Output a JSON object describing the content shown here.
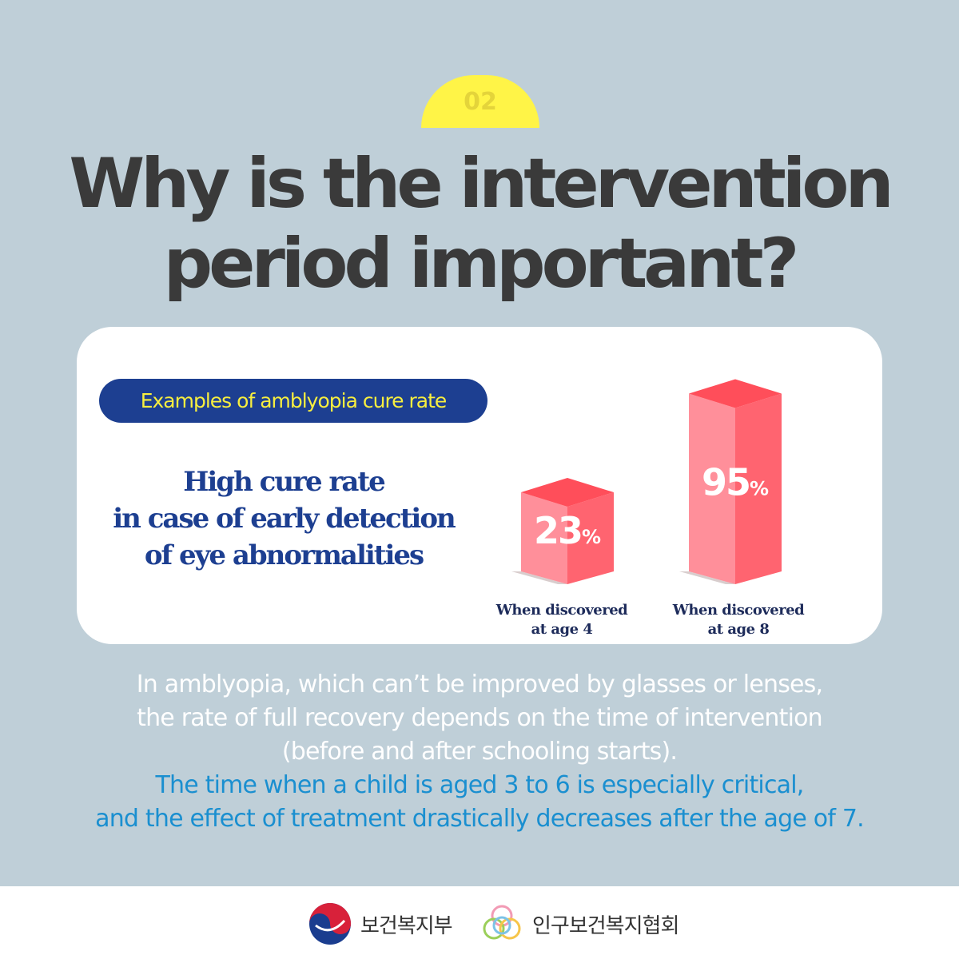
{
  "page_number": "02",
  "headline": [
    "Why is the intervention",
    "period important?"
  ],
  "pill_label": "Examples of amblyopia cure rate",
  "subhead": [
    "High cure rate",
    "in case of early detection",
    "of eye abnormalities"
  ],
  "chart_data": {
    "type": "bar",
    "categories": [
      "When discovered at age 4",
      "When discovered at age 8"
    ],
    "category_lines": [
      [
        "When discovered",
        "at age 4"
      ],
      [
        "When discovered",
        "at age 8"
      ]
    ],
    "values": [
      23,
      95
    ],
    "value_labels": [
      {
        "num": "23",
        "unit": "%"
      },
      {
        "num": "95",
        "unit": "%"
      }
    ],
    "ylim": [
      0,
      100
    ],
    "colors": {
      "front": "#ff8f9a",
      "side": "#ff6470",
      "top": "#ff4e5a",
      "shadow": "#d8cdcd"
    }
  },
  "body": {
    "white_lines": [
      "In amblyopia, which can’t be improved by glasses or lenses,",
      "the rate of full recovery depends on the time of intervention",
      "(before and after schooling starts)."
    ],
    "blue_lines": [
      "The time when a child is aged 3 to 6 is especially critical,",
      "and the effect of treatment drastically decreases after the age of 7."
    ]
  },
  "footer": {
    "logo1_text": "보건복지부",
    "logo2_text": "인구보건복지협회",
    "colors": {
      "red": "#d8213a",
      "blue": "#1a3d8f"
    }
  }
}
